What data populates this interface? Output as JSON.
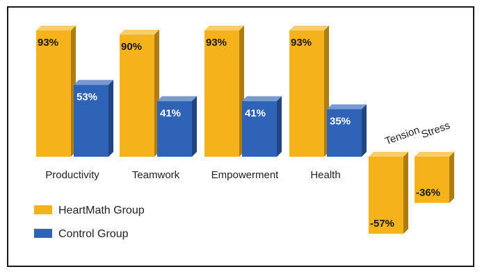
{
  "chart_data": {
    "type": "bar",
    "title": "",
    "xlabel": "",
    "ylabel": "",
    "categories": [
      "Productivity",
      "Teamwork",
      "Empowerment",
      "Health",
      "Tension",
      "Stress"
    ],
    "series": [
      {
        "name": "HeartMath Group",
        "color": "#f6b21b",
        "values": [
          93,
          90,
          93,
          93,
          -57,
          -36
        ]
      },
      {
        "name": "Control Group",
        "color": "#2f63b7",
        "values": [
          53,
          41,
          41,
          35,
          null,
          null
        ]
      }
    ],
    "value_labels": {
      "HeartMath Group": [
        "93%",
        "90%",
        "93%",
        "93%",
        "-57%",
        "-36%"
      ],
      "Control Group": [
        "53%",
        "41%",
        "41%",
        "35%",
        "",
        ""
      ]
    },
    "ylim": [
      -57,
      93
    ],
    "grid": false,
    "legend": "bottom-left"
  }
}
